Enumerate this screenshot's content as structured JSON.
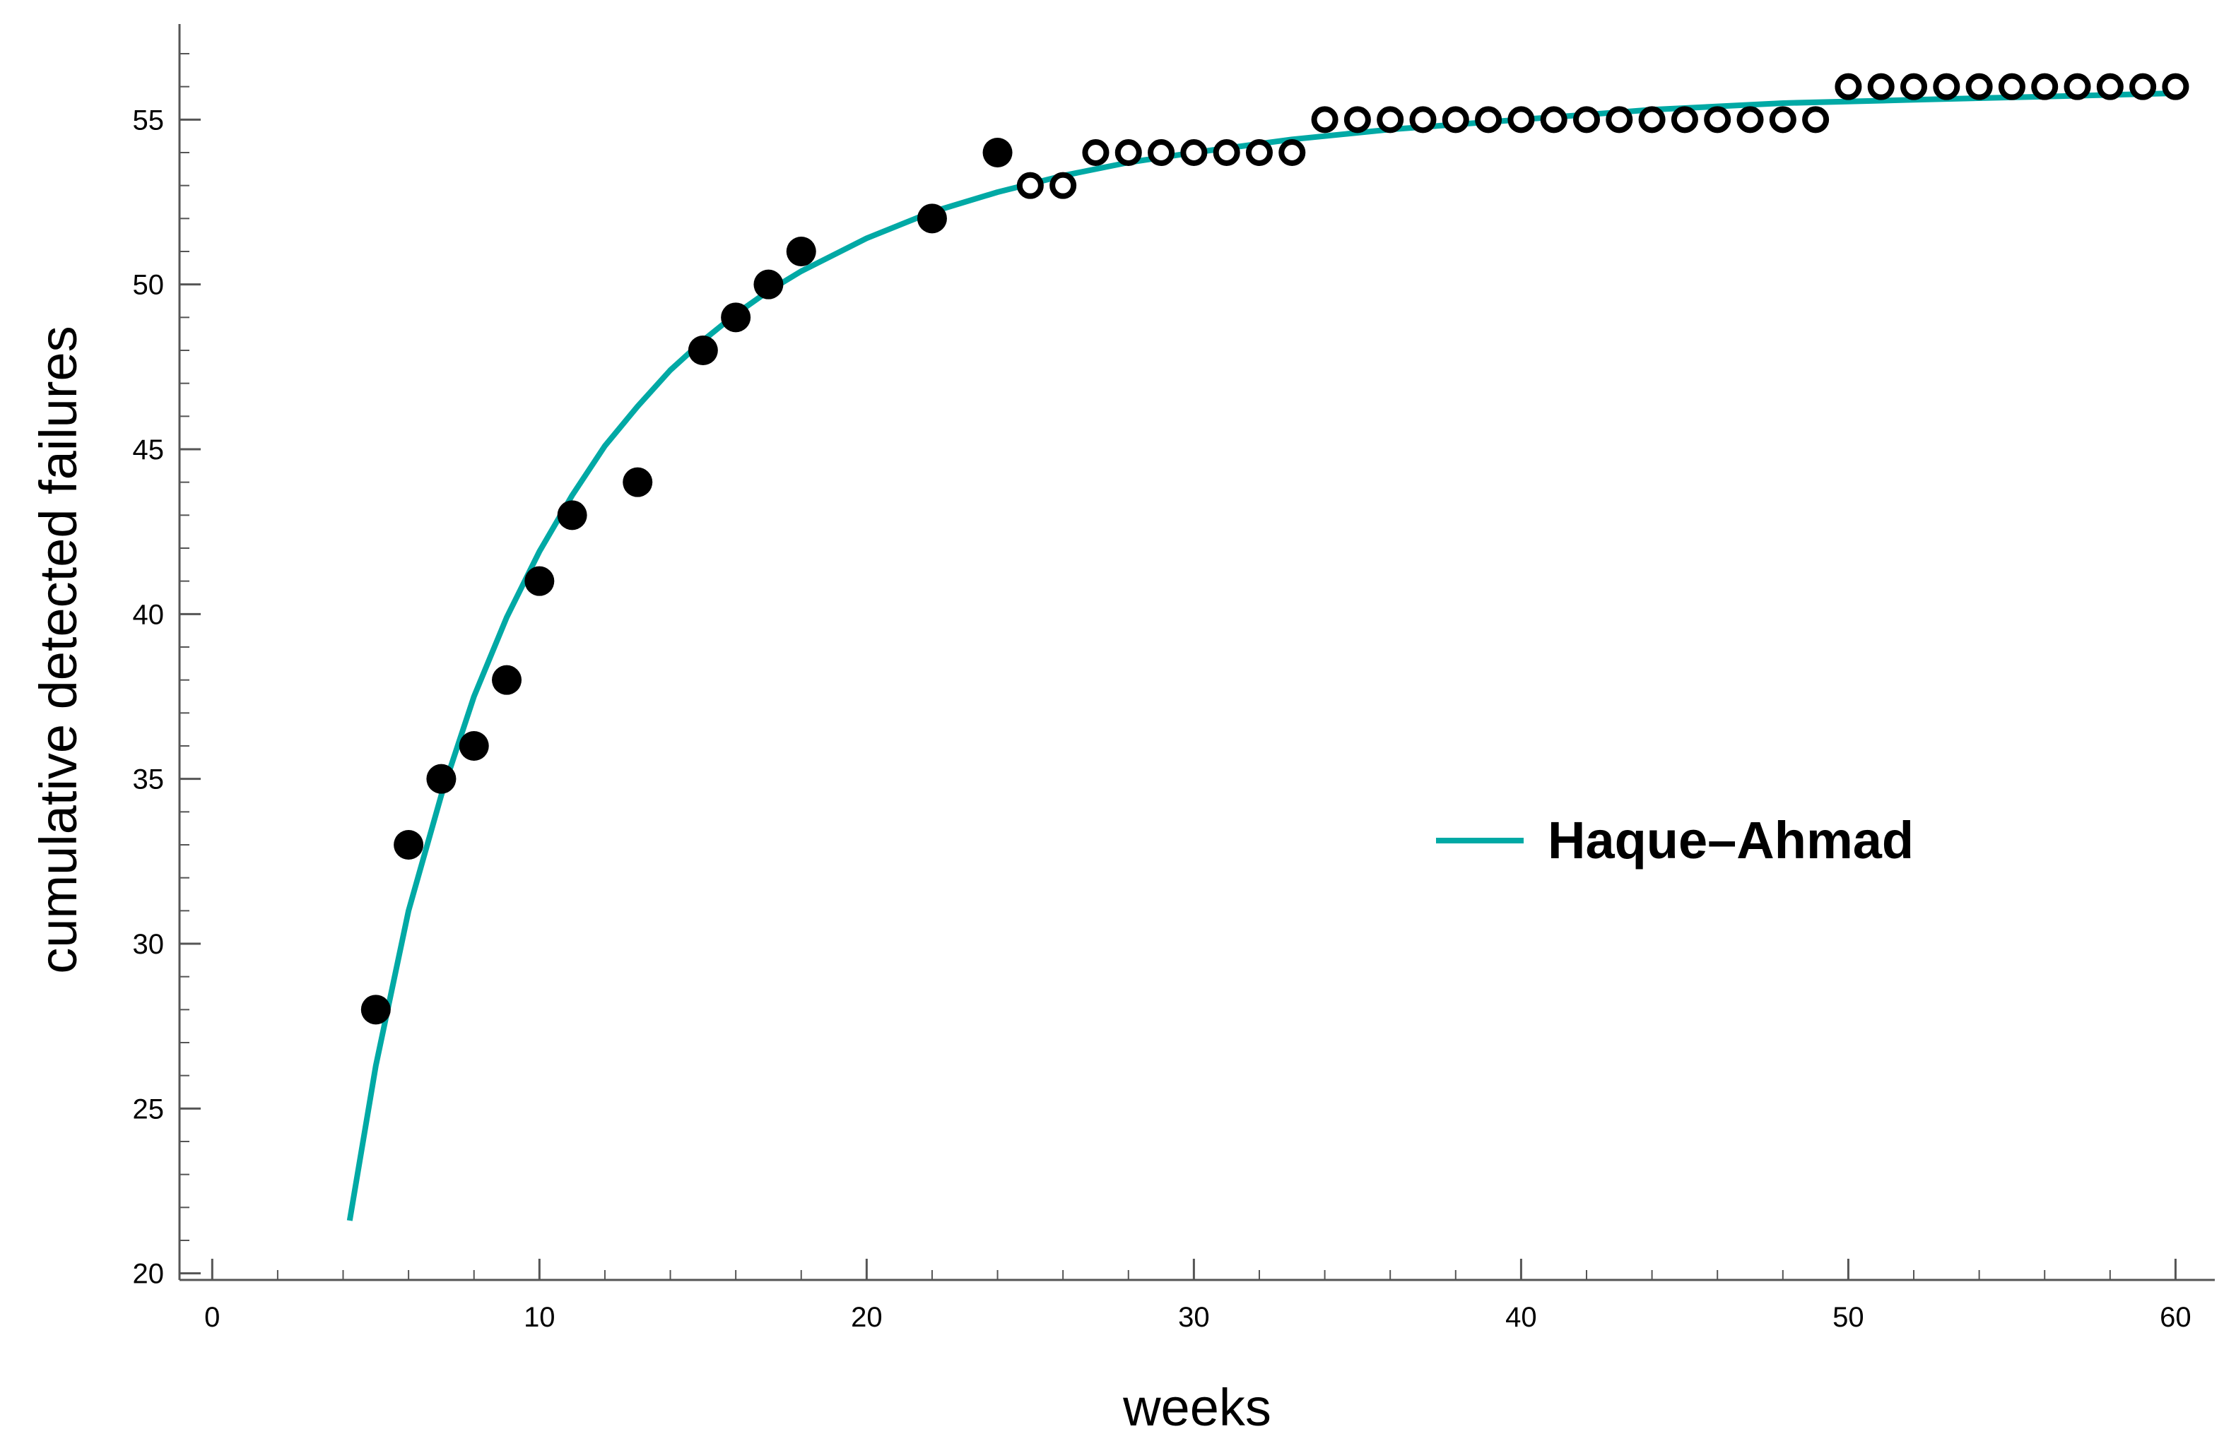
{
  "chart_data": {
    "type": "scatter",
    "title": "",
    "xlabel": "weeks",
    "ylabel": "cumulative detected failures",
    "xlim": [
      -1,
      61.2
    ],
    "ylim": [
      19.8,
      57.9
    ],
    "x_ticks": [
      0,
      10,
      20,
      30,
      40,
      50,
      60
    ],
    "y_ticks": [
      20,
      25,
      30,
      35,
      40,
      45,
      50,
      55
    ],
    "x_tick_labels": [
      "0",
      "10",
      "20",
      "30",
      "40",
      "50",
      "60"
    ],
    "y_tick_labels": [
      "20",
      "25",
      "30",
      "35",
      "40",
      "45",
      "50",
      "55"
    ],
    "grid": false,
    "legend": {
      "position": "center-right",
      "entries": [
        "Haque–Ahmad"
      ]
    },
    "colors": {
      "fit": "#00a9a5",
      "points": "#000000"
    },
    "series": [
      {
        "style": "filled",
        "x": [
          5,
          6,
          7,
          8,
          9,
          10,
          11,
          13,
          15,
          16,
          17,
          18,
          22,
          24
        ],
        "y": [
          28,
          33,
          35,
          36,
          38,
          41,
          43,
          44,
          48,
          49,
          50,
          51,
          52,
          54
        ]
      },
      {
        "style": "open",
        "x": [
          25,
          26,
          27,
          28,
          29,
          30,
          31,
          32,
          33,
          34,
          35,
          36,
          37,
          38,
          39,
          40,
          41,
          42,
          43,
          44,
          45,
          46,
          47,
          48,
          49,
          50,
          51,
          52,
          53,
          54,
          55,
          56,
          57,
          58,
          59,
          60
        ],
        "y": [
          53,
          53,
          54,
          54,
          54,
          54,
          54,
          54,
          54,
          55,
          55,
          55,
          55,
          55,
          55,
          55,
          55,
          55,
          55,
          55,
          55,
          55,
          55,
          55,
          55,
          56,
          56,
          56,
          56,
          56,
          56,
          56,
          56,
          56,
          56,
          56
        ]
      },
      {
        "name": "Haque–Ahmad",
        "style": "line",
        "x": [
          4.2,
          5,
          6,
          7,
          8,
          9,
          10,
          11,
          12,
          13,
          14,
          15,
          16,
          17,
          18,
          20,
          22,
          24,
          26,
          28,
          30,
          33,
          36,
          40,
          44,
          48,
          52,
          56,
          60
        ],
        "y": [
          21.6,
          26.3,
          31.0,
          34.5,
          37.5,
          39.9,
          41.9,
          43.6,
          45.1,
          46.3,
          47.4,
          48.3,
          49.1,
          49.8,
          50.4,
          51.4,
          52.2,
          52.8,
          53.3,
          53.7,
          54.0,
          54.4,
          54.7,
          55.0,
          55.3,
          55.5,
          55.6,
          55.7,
          55.8
        ]
      }
    ]
  }
}
